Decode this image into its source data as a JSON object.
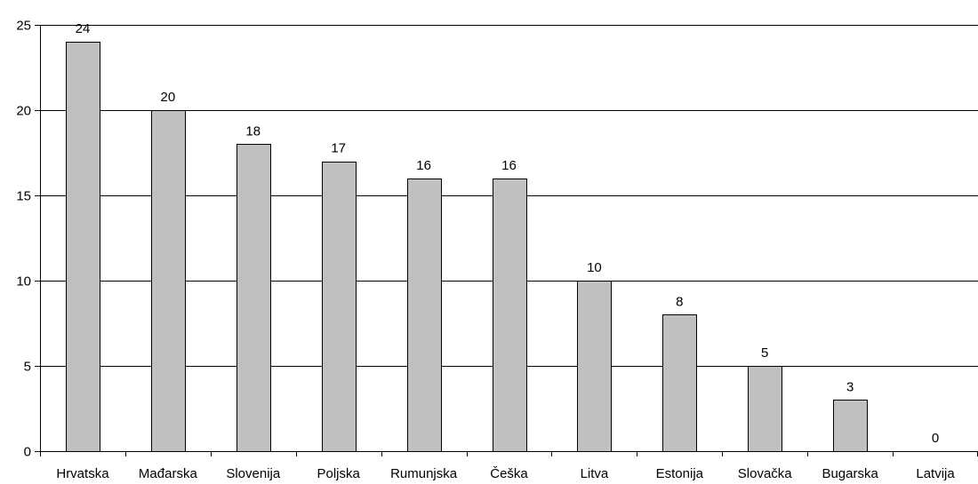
{
  "chart_data": {
    "type": "bar",
    "title": "",
    "xlabel": "",
    "ylabel": "",
    "categories": [
      "Hrvatska",
      "Mađarska",
      "Slovenija",
      "Poljska",
      "Rumunjska",
      "Češka",
      "Litva",
      "Estonija",
      "Slovačka",
      "Bugarska",
      "Latvija"
    ],
    "values": [
      24,
      20,
      18,
      17,
      16,
      16,
      10,
      8,
      5,
      3,
      0
    ],
    "data_labels": [
      "24",
      "20",
      "18",
      "17",
      "16",
      "16",
      "10",
      "8",
      "5",
      "3",
      "0"
    ],
    "ylim": [
      0,
      25
    ],
    "yticks": [
      0,
      5,
      10,
      15,
      20,
      25
    ],
    "ytick_labels": [
      "0",
      "5",
      "10",
      "15",
      "20",
      "25"
    ],
    "grid": true,
    "legend": "none",
    "colors": {
      "bar_fill": "#c0c0c0",
      "bar_stroke": "#000000",
      "grid": "#000000",
      "axis": "#000000"
    }
  }
}
